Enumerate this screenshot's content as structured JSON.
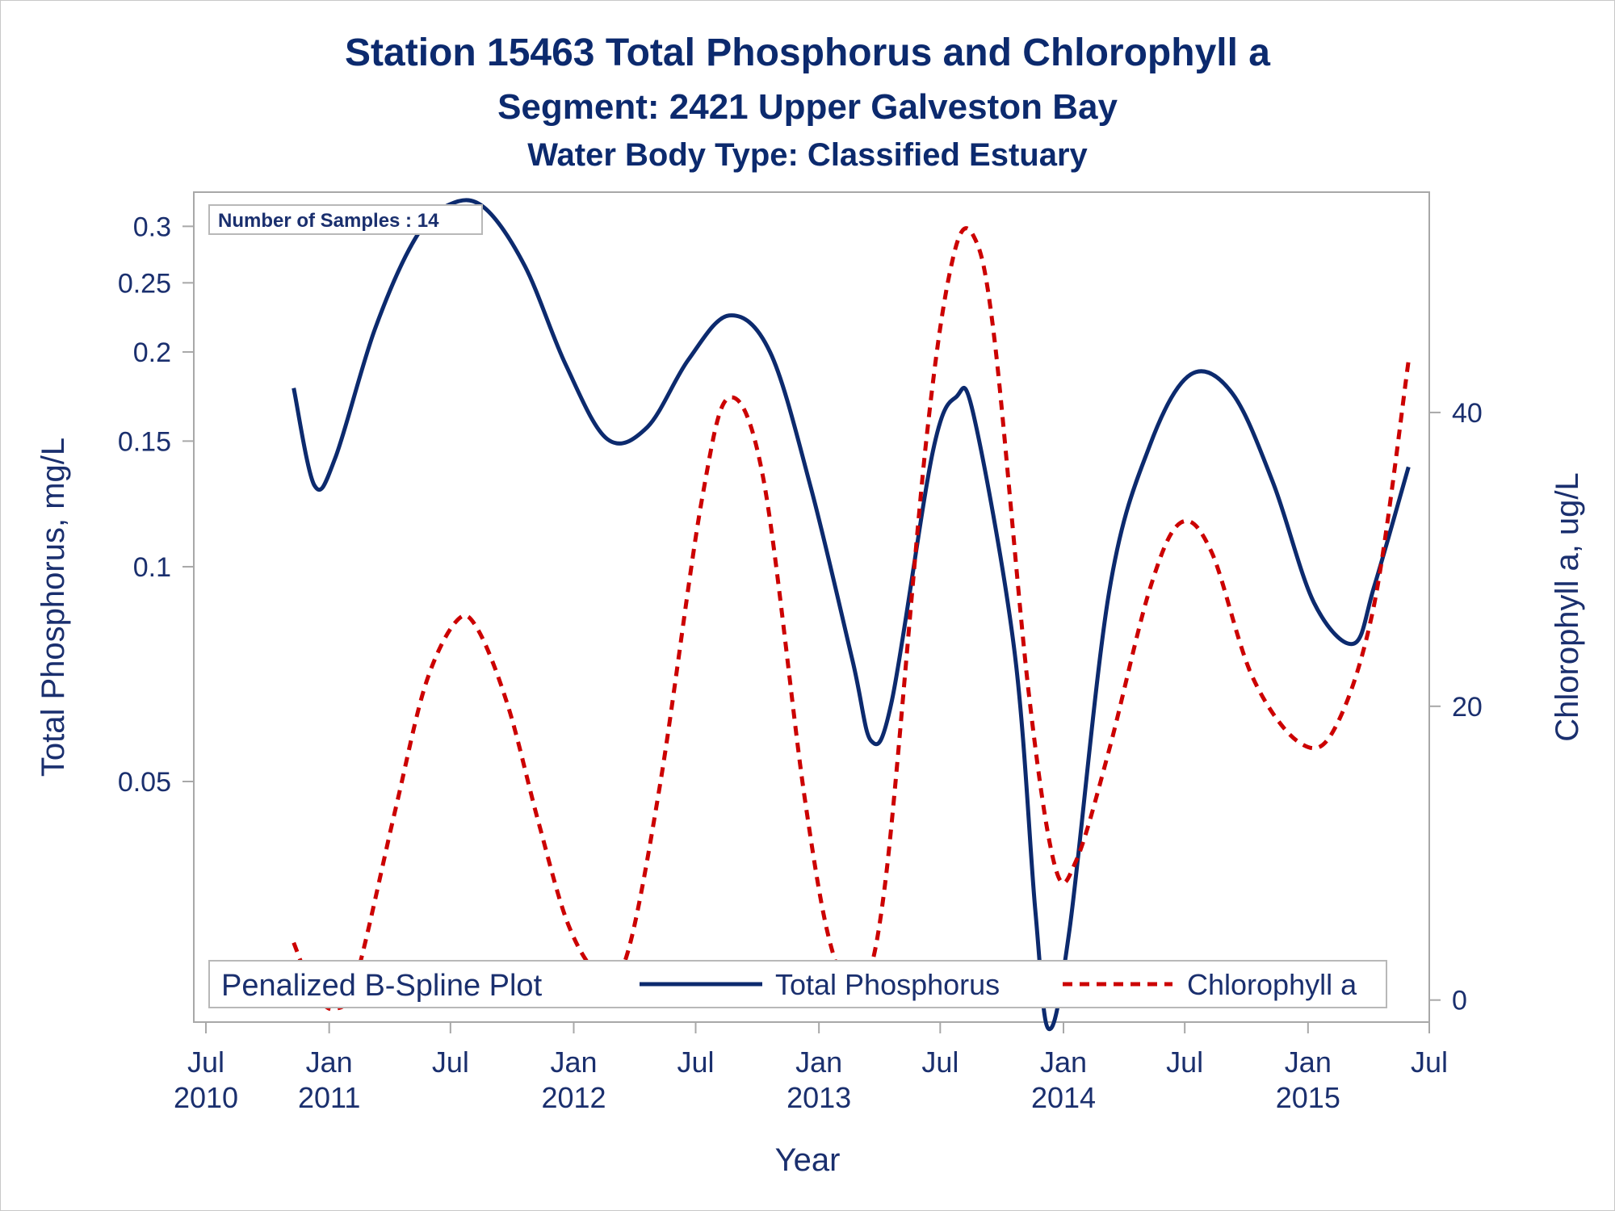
{
  "titles": {
    "line1": "Station 15463  Total Phosphorus and Chlorophyll a",
    "line2": "Segment: 2421  Upper Galveston Bay",
    "line3": "Water Body Type: Classified Estuary"
  },
  "inset": {
    "samples_label": "Number of Samples : 14"
  },
  "legend": {
    "title": "Penalized B-Spline Plot",
    "tp_label": "Total Phosphorus",
    "chl_label": "Chlorophyll a"
  },
  "chart_data": {
    "type": "line",
    "title": "Station 15463  Total Phosphorus and Chlorophyll a",
    "xlabel": "Year",
    "ylabel": "Total Phosphorus, mg/L",
    "y2label": "Chlorophyll a, ug/L",
    "x_range": [
      "2010-07-01",
      "2015-07-01"
    ],
    "x_ticks": [
      {
        "date": "2010-07-01",
        "line1": "Jul",
        "line2": "2010"
      },
      {
        "date": "2011-01-01",
        "line1": "Jan",
        "line2": "2011"
      },
      {
        "date": "2011-07-01",
        "line1": "Jul",
        "line2": ""
      },
      {
        "date": "2012-01-01",
        "line1": "Jan",
        "line2": "2012"
      },
      {
        "date": "2012-07-01",
        "line1": "Jul",
        "line2": ""
      },
      {
        "date": "2013-01-01",
        "line1": "Jan",
        "line2": "2013"
      },
      {
        "date": "2013-07-01",
        "line1": "Jul",
        "line2": ""
      },
      {
        "date": "2014-01-01",
        "line1": "Jan",
        "line2": "2014"
      },
      {
        "date": "2014-07-01",
        "line1": "Jul",
        "line2": ""
      },
      {
        "date": "2015-01-01",
        "line1": "Jan",
        "line2": "2015"
      },
      {
        "date": "2015-07-01",
        "line1": "Jul",
        "line2": ""
      }
    ],
    "y_scale": "log",
    "y_range": [
      0.023,
      0.335
    ],
    "y_ticks": [
      {
        "v": 0.05,
        "label": "0.05"
      },
      {
        "v": 0.1,
        "label": "0.1"
      },
      {
        "v": 0.15,
        "label": "0.15"
      },
      {
        "v": 0.2,
        "label": "0.2"
      },
      {
        "v": 0.25,
        "label": "0.25"
      },
      {
        "v": 0.3,
        "label": "0.3"
      }
    ],
    "y2_scale": "linear",
    "y2_range": [
      -1.5,
      55
    ],
    "y2_ticks": [
      {
        "v": 0,
        "label": "0"
      },
      {
        "v": 20,
        "label": "20"
      },
      {
        "v": 40,
        "label": "40"
      }
    ],
    "legend_position": "bottom-inside",
    "series": [
      {
        "name": "Total Phosphorus",
        "axis": "left",
        "color": "#0c2a6e",
        "dash": "solid",
        "points": [
          [
            "2010-11-09",
            0.178
          ],
          [
            "2010-12-10",
            0.13
          ],
          [
            "2011-01-10",
            0.142
          ],
          [
            "2011-03-10",
            0.215
          ],
          [
            "2011-05-10",
            0.289
          ],
          [
            "2011-06-30",
            0.322
          ],
          [
            "2011-08-20",
            0.319
          ],
          [
            "2011-10-20",
            0.264
          ],
          [
            "2011-12-20",
            0.192
          ],
          [
            "2012-02-20",
            0.151
          ],
          [
            "2012-04-20",
            0.157
          ],
          [
            "2012-06-20",
            0.195
          ],
          [
            "2012-08-20",
            0.225
          ],
          [
            "2012-10-20",
            0.2
          ],
          [
            "2012-12-20",
            0.129
          ],
          [
            "2013-02-20",
            0.074
          ],
          [
            "2013-03-20",
            0.057
          ],
          [
            "2013-04-20",
            0.065
          ],
          [
            "2013-06-20",
            0.145
          ],
          [
            "2013-07-25",
            0.173
          ],
          [
            "2013-08-20",
            0.163
          ],
          [
            "2013-10-20",
            0.076
          ],
          [
            "2013-11-20",
            0.033
          ],
          [
            "2013-12-10",
            0.0225
          ],
          [
            "2014-01-10",
            0.031
          ],
          [
            "2014-03-10",
            0.092
          ],
          [
            "2014-05-10",
            0.148
          ],
          [
            "2014-07-10",
            0.186
          ],
          [
            "2014-09-10",
            0.175
          ],
          [
            "2014-11-10",
            0.131
          ],
          [
            "2015-01-10",
            0.089
          ],
          [
            "2015-03-10",
            0.078
          ],
          [
            "2015-04-10",
            0.094
          ],
          [
            "2015-05-31",
            0.138
          ]
        ]
      },
      {
        "name": "Chlorophyll a",
        "axis": "right",
        "color": "#cc0000",
        "dash": "dashed",
        "points": [
          [
            "2010-11-09",
            3.9
          ],
          [
            "2010-12-10",
            0.5
          ],
          [
            "2011-01-10",
            -0.6
          ],
          [
            "2011-02-10",
            1.5
          ],
          [
            "2011-04-10",
            13.0
          ],
          [
            "2011-05-25",
            21.5
          ],
          [
            "2011-07-10",
            25.8
          ],
          [
            "2011-08-10",
            25.3
          ],
          [
            "2011-09-25",
            20.0
          ],
          [
            "2011-11-10",
            12.0
          ],
          [
            "2011-12-25",
            5.0
          ],
          [
            "2012-02-10",
            1.7
          ],
          [
            "2012-03-20",
            3.0
          ],
          [
            "2012-05-10",
            15.0
          ],
          [
            "2012-07-10",
            34.0
          ],
          [
            "2012-08-20",
            41.0
          ],
          [
            "2012-10-10",
            35.5
          ],
          [
            "2012-12-10",
            14.0
          ],
          [
            "2013-01-20",
            3.5
          ],
          [
            "2013-03-01",
            0.6
          ],
          [
            "2013-04-10",
            8.0
          ],
          [
            "2013-06-10",
            38.0
          ],
          [
            "2013-07-20",
            50.5
          ],
          [
            "2013-08-20",
            52.0
          ],
          [
            "2013-09-20",
            45.0
          ],
          [
            "2013-11-10",
            21.0
          ],
          [
            "2013-12-20",
            9.0
          ],
          [
            "2014-01-20",
            9.5
          ],
          [
            "2014-03-10",
            17.0
          ],
          [
            "2014-05-10",
            28.0
          ],
          [
            "2014-06-25",
            32.5
          ],
          [
            "2014-08-10",
            30.5
          ],
          [
            "2014-10-10",
            22.0
          ],
          [
            "2014-12-20",
            17.5
          ],
          [
            "2015-02-10",
            18.5
          ],
          [
            "2015-04-10",
            27.0
          ],
          [
            "2015-05-31",
            43.5
          ]
        ]
      }
    ]
  }
}
